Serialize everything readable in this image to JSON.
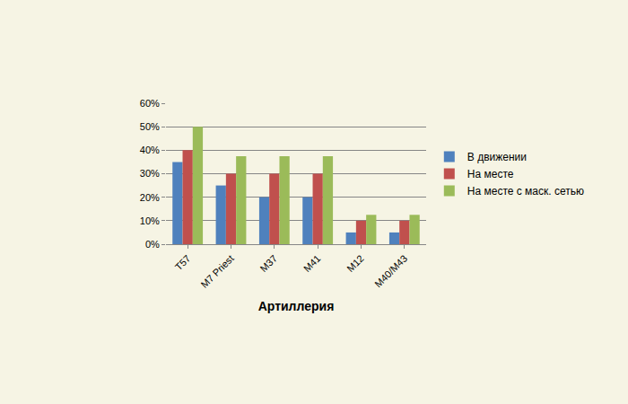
{
  "chart_data": {
    "type": "bar",
    "x_label": "Артиллерия",
    "categories": [
      "T57",
      "M7 Priest",
      "M37",
      "M41",
      "M12",
      "M40/M43"
    ],
    "series": [
      {
        "name": "В движении",
        "color": "#4f81bd",
        "values": [
          35,
          25,
          20,
          20,
          5,
          5
        ]
      },
      {
        "name": "На месте",
        "color": "#c0504d",
        "values": [
          40,
          30,
          30,
          30,
          10,
          10
        ]
      },
      {
        "name": "На месте с маск. сетью",
        "color": "#9bbb59",
        "values": [
          50,
          37.5,
          37.5,
          37.5,
          12.5,
          12.5
        ]
      }
    ],
    "ylim": [
      0,
      60
    ],
    "yticks": [
      {
        "value": 0,
        "label": "0%"
      },
      {
        "value": 10,
        "label": "10%"
      },
      {
        "value": 20,
        "label": "20%"
      },
      {
        "value": 30,
        "label": "30%"
      },
      {
        "value": 40,
        "label": "40%"
      },
      {
        "value": 50,
        "label": "50%"
      },
      {
        "value": 60,
        "label": "60%"
      }
    ],
    "grid": true,
    "legend": "right"
  }
}
